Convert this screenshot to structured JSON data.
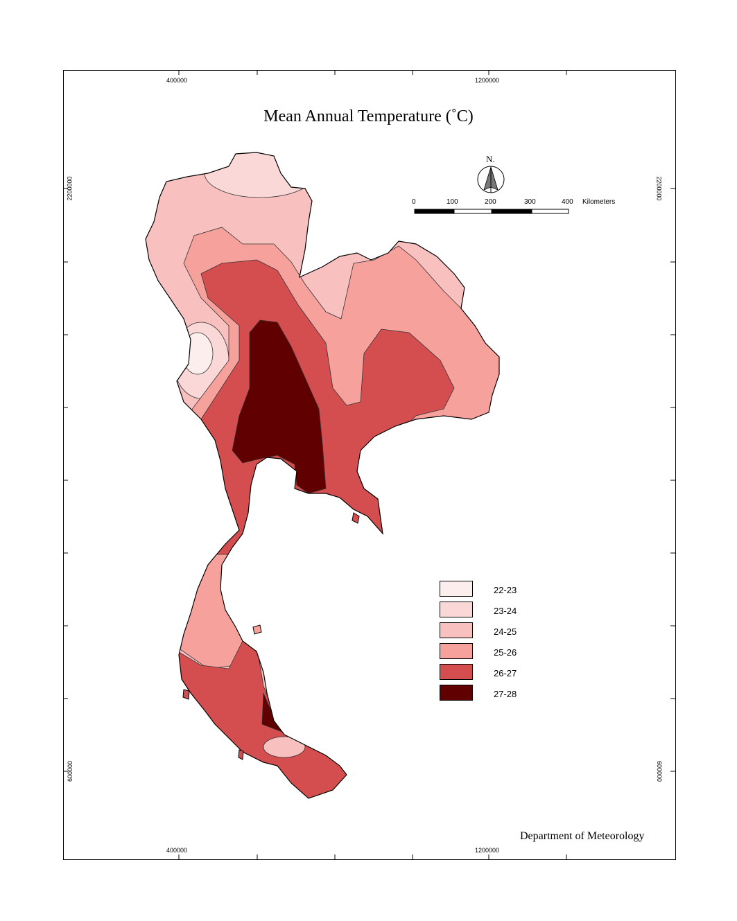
{
  "title": "Mean Annual Temperature (˚C)",
  "credit": "Department of Meteorology",
  "axes": {
    "top": [
      "400000",
      "1200000"
    ],
    "bottom": [
      "400000",
      "1200000"
    ],
    "left": [
      "2200000",
      "600000"
    ],
    "right": [
      "2200000",
      "600000"
    ]
  },
  "north_arrow": {
    "label": "N."
  },
  "scale_bar": {
    "ticks": [
      "0",
      "100",
      "200",
      "300",
      "400"
    ],
    "unit": "Kilometers"
  },
  "legend": [
    {
      "label": "22-23",
      "color": "#fdeeee"
    },
    {
      "label": "23-24",
      "color": "#fbd8d8"
    },
    {
      "label": "24-25",
      "color": "#f9c0c0"
    },
    {
      "label": "25-26",
      "color": "#f6a19c"
    },
    {
      "label": "26-27",
      "color": "#d44e50"
    },
    {
      "label": "27-28",
      "color": "#600000"
    }
  ]
}
